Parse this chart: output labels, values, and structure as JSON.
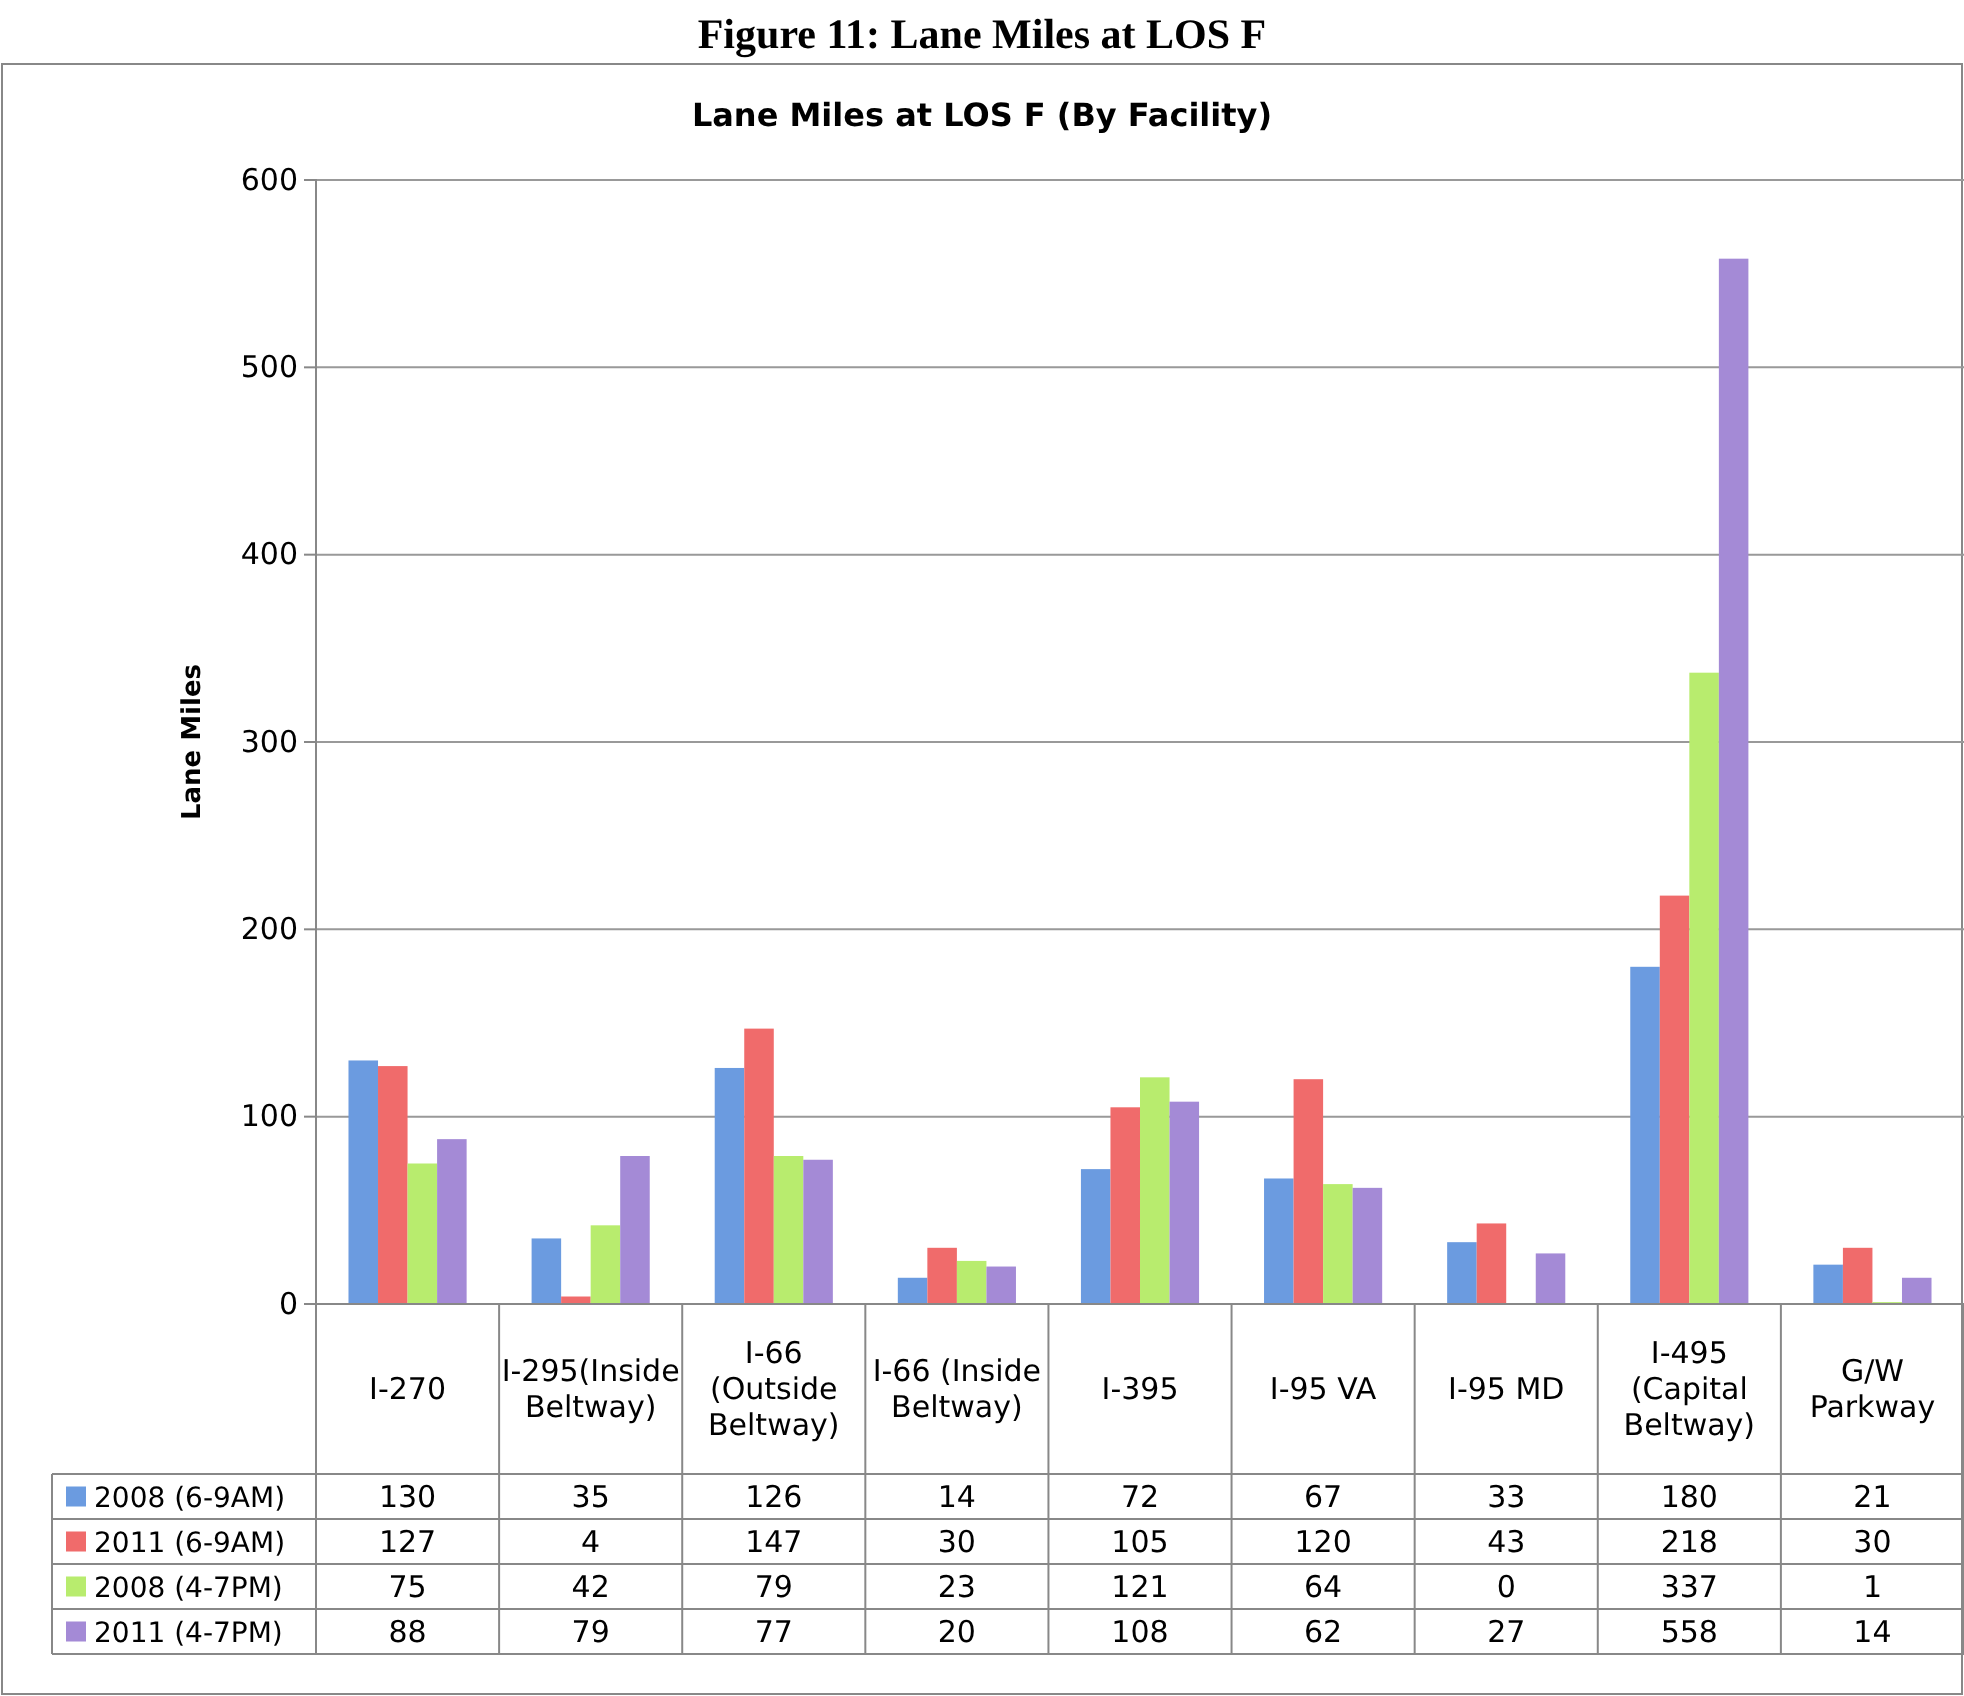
{
  "chart_data": {
    "type": "bar",
    "title": "Figure 11: Lane Miles at LOS F",
    "subtitle": "Lane Miles at LOS F (By Facility)",
    "ylabel": "Lane Miles",
    "categories": [
      "I-270",
      "I-295(Inside Beltway)",
      "I-66 (Outside Beltway)",
      "I-66 (Inside Beltway)",
      "I-395",
      "I-95 VA",
      "I-95 MD",
      "I-495 (Capital Beltway)",
      "G/W Parkway"
    ],
    "series": [
      {
        "name": "2008 (6-9AM)",
        "color": "#6b9be0",
        "values": [
          130,
          35,
          126,
          14,
          72,
          67,
          33,
          180,
          21
        ]
      },
      {
        "name": "2011 (6-9AM)",
        "color": "#f06b6b",
        "values": [
          127,
          4,
          147,
          30,
          105,
          120,
          43,
          218,
          30
        ]
      },
      {
        "name": "2008 (4-7PM)",
        "color": "#b8ec6e",
        "values": [
          75,
          42,
          79,
          23,
          121,
          64,
          0,
          337,
          1
        ]
      },
      {
        "name": "2011 (4-7PM)",
        "color": "#a48ad6",
        "values": [
          88,
          79,
          77,
          20,
          108,
          62,
          27,
          558,
          14
        ]
      }
    ],
    "ylim": [
      0,
      600
    ],
    "yticks": [
      0,
      100,
      200,
      300,
      400,
      500,
      600
    ],
    "grid": "y",
    "legend": "bottom left",
    "data_labels": true
  }
}
